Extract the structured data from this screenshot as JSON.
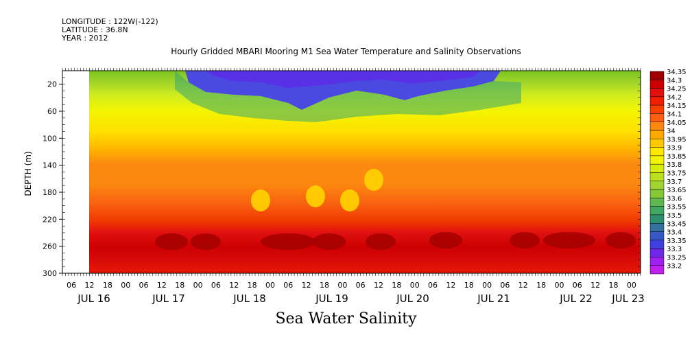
{
  "header": {
    "longitude": "LONGITUDE : 122W(-122)",
    "latitude": "LATITUDE : 36.8N",
    "year": "YEAR : 2012"
  },
  "chart_data": {
    "type": "heatmap",
    "title": "Hourly Gridded MBARI Mooring M1 Sea Water Temperature and Salinity Observations",
    "xlabel": "Sea Water Salinity",
    "ylabel": "DEPTH (m)",
    "ylim": [
      300,
      0
    ],
    "yticks": [
      20,
      60,
      100,
      140,
      180,
      220,
      260,
      300
    ],
    "xticks_hours": [
      "06",
      "12",
      "18",
      "00",
      "06",
      "12",
      "18",
      "00",
      "06",
      "12",
      "18",
      "00",
      "06",
      "12",
      "18",
      "00",
      "06",
      "12",
      "18",
      "00",
      "06",
      "12",
      "18",
      "00",
      "06",
      "12",
      "18",
      "00",
      "06",
      "12",
      "18",
      "00"
    ],
    "xdates": [
      "JUL 16",
      "JUL 17",
      "JUL 18",
      "JUL 19",
      "JUL 20",
      "JUL 21",
      "JUL 22",
      "JUL 23"
    ],
    "data_start": "JUL 16 12:00",
    "colorbar": {
      "levels": [
        34.35,
        34.3,
        34.25,
        34.2,
        34.15,
        34.1,
        34.05,
        34,
        33.95,
        33.9,
        33.85,
        33.8,
        33.75,
        33.7,
        33.65,
        33.6,
        33.55,
        33.5,
        33.45,
        33.4,
        33.35,
        33.3,
        33.25,
        33.2
      ],
      "colors": [
        "#a00000",
        "#cc0000",
        "#e01010",
        "#f02000",
        "#f84000",
        "#fc6010",
        "#fd8810",
        "#ffa800",
        "#ffc800",
        "#ffe800",
        "#f4f400",
        "#d8ec10",
        "#bce020",
        "#a0d430",
        "#84c838",
        "#60b850",
        "#40a860",
        "#2f9070",
        "#3470a0",
        "#3858c8",
        "#4040e0",
        "#7028e8",
        "#a020f0",
        "#c020f0"
      ]
    }
  }
}
